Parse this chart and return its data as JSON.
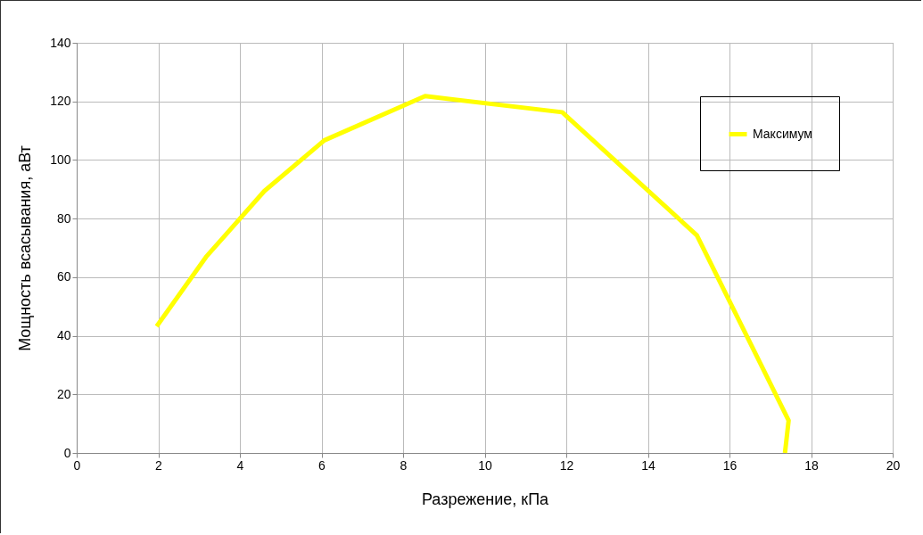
{
  "chart_data": {
    "type": "line",
    "xlabel": "Разрежение, кПа",
    "ylabel": "Мощность всасывания, аВт",
    "xlim": [
      0,
      20
    ],
    "xticks": [
      0,
      2,
      4,
      6,
      8,
      10,
      12,
      14,
      16,
      18,
      20
    ],
    "ylim": [
      0,
      140
    ],
    "yticks": [
      0,
      20,
      40,
      60,
      80,
      100,
      120,
      140
    ],
    "grid": true,
    "legend": "top right",
    "marker": "none",
    "line_style": "solid",
    "series": [
      {
        "name": "Максимум",
        "color": "#ffff00",
        "x": [
          1.96,
          3.17,
          4.6,
          6.07,
          8.54,
          11.9,
          15.2,
          17.45,
          17.36
        ],
        "values": [
          43.2,
          66.9,
          89.4,
          106.7,
          121.8,
          116.3,
          74.3,
          11.1,
          0
        ]
      }
    ]
  }
}
